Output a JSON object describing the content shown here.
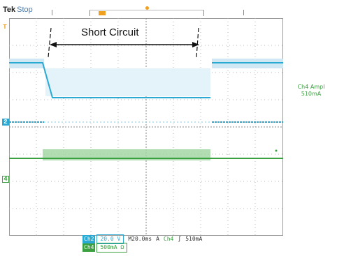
{
  "header": {
    "brand": "Tek",
    "run_state": "Stop"
  },
  "annotation": {
    "label": "Short Circuit"
  },
  "right_readout": {
    "line1": "Ch4 Ampl",
    "line2": "510mA"
  },
  "status_bar": {
    "ch2_tag": "Ch2",
    "ch2_scale": "20.0 V",
    "timebase": "M20.0ms",
    "trigger_mode": "A",
    "trigger_source": "Ch4",
    "trigger_slope": "∫",
    "trigger_level": "510mA",
    "ch4_tag": "Ch4",
    "ch4_scale": "500mA Ω"
  },
  "channel_markers": {
    "trigger": "T",
    "ch2": "2",
    "ch4": "4"
  },
  "colors": {
    "ch2": "#2aaad2",
    "ch4": "#3aa040",
    "trigger": "#f0a020",
    "grid": "#9a9a9a"
  }
}
